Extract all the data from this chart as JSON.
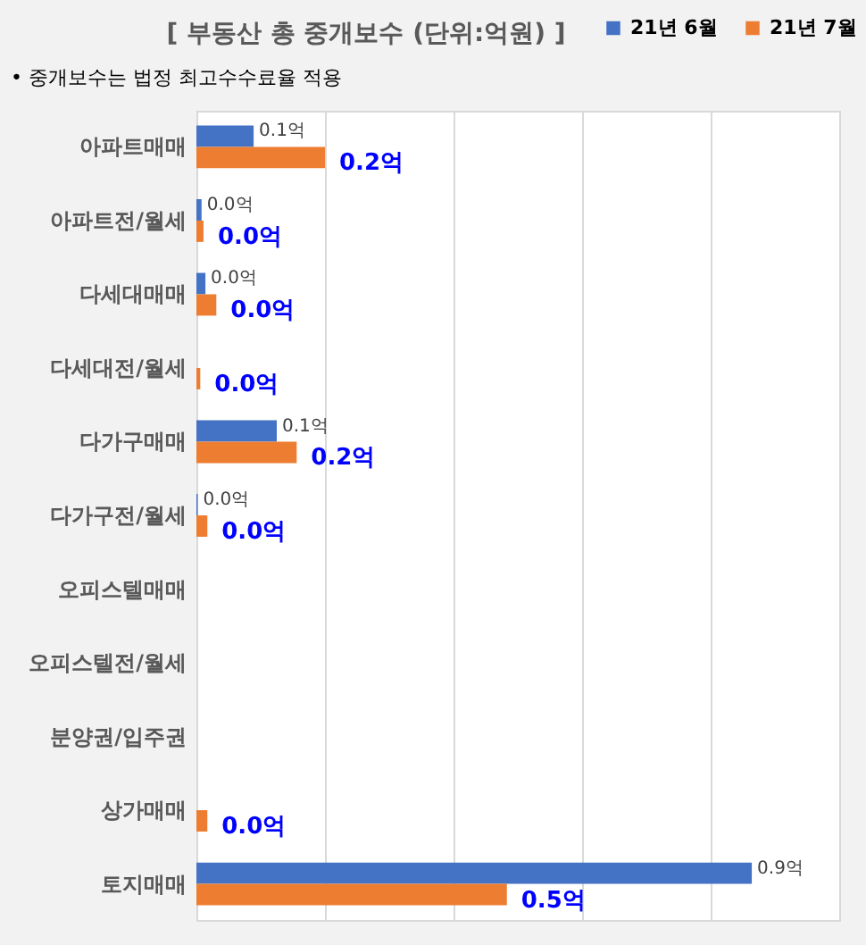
{
  "chart_data": {
    "type": "bar",
    "orientation": "horizontal",
    "title": "[ 부동산 총 중개보수 (단위:억원) ]",
    "annotations": [
      "• 중개보수는 법정 최고수수료율 적용"
    ],
    "categories": [
      "아파트매매",
      "아파트전/월세",
      "다세대매매",
      "다세대전/월세",
      "다가구매매",
      "다가구전/월세",
      "오피스텔매매",
      "오피스텔전/월세",
      "분양권/입주권",
      "상가매매",
      "토지매매"
    ],
    "series": [
      {
        "name": "21년 6월",
        "color": "#4472c4",
        "values": [
          0.089,
          0.008,
          0.014,
          null,
          0.125,
          0.002,
          null,
          null,
          null,
          null,
          0.864
        ],
        "value_labels": [
          "0.1억",
          "0.0억",
          "0.0억",
          null,
          "0.1억",
          "0.0억",
          null,
          null,
          null,
          null,
          "0.9억"
        ]
      },
      {
        "name": "21년 7월",
        "color": "#ed7d31",
        "values": [
          0.2,
          0.011,
          0.031,
          0.006,
          0.156,
          0.017,
          null,
          null,
          null,
          0.017,
          0.483
        ],
        "value_labels": [
          "0.2억",
          "0.0억",
          "0.0억",
          "0.0억",
          "0.2억",
          "0.0억",
          null,
          null,
          null,
          "0.0억",
          "0.5억"
        ]
      }
    ],
    "xlim": [
      0,
      1.0
    ],
    "xticks": [
      {
        "value": 0,
        "label": null
      },
      {
        "value": 0.2,
        "label": null
      },
      {
        "value": 0.4,
        "label": null
      },
      {
        "value": 0.6,
        "label": null
      },
      {
        "value": 0.8,
        "label": null
      },
      {
        "value": 1.0,
        "label": null
      }
    ],
    "grid": "x",
    "legend": "top right",
    "tick_labels": "y"
  }
}
